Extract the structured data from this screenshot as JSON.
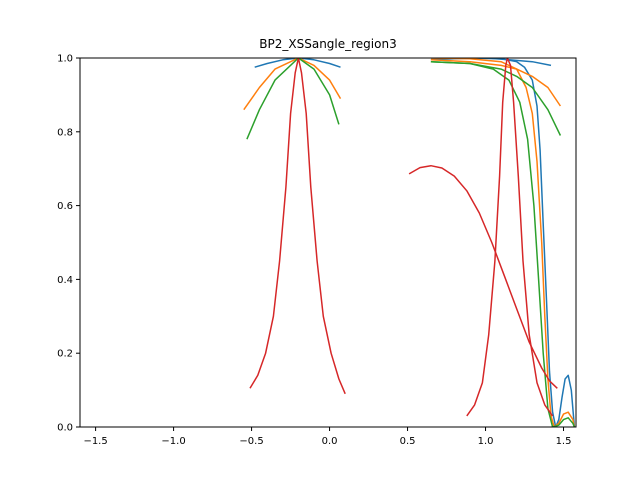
{
  "chart_data": {
    "type": "line",
    "title": "BP2_XSSangle_region3",
    "xlabel": "",
    "ylabel": "",
    "xlim": [
      -1.6,
      1.58
    ],
    "ylim": [
      0.0,
      1.0
    ],
    "xticks": [
      -1.5,
      -1.0,
      -0.5,
      0.0,
      0.5,
      1.0,
      1.5
    ],
    "xtick_labels": [
      "−1.5",
      "−1.0",
      "−0.5",
      "0.0",
      "0.5",
      "1.0",
      "1.5"
    ],
    "yticks": [
      0.0,
      0.2,
      0.4,
      0.6,
      0.8,
      1.0
    ],
    "ytick_labels": [
      "0.0",
      "0.2",
      "0.4",
      "0.6",
      "0.8",
      "1.0"
    ],
    "grid": false,
    "legend": "none",
    "series": [
      {
        "color": "#1f77b4",
        "segments": [
          [
            [
              -0.48,
              0.975
            ],
            [
              -0.4,
              0.985
            ],
            [
              -0.3,
              0.995
            ],
            [
              -0.2,
              1.0
            ],
            [
              -0.1,
              0.995
            ],
            [
              0.0,
              0.985
            ],
            [
              0.07,
              0.975
            ]
          ],
          [
            [
              0.65,
              0.995
            ],
            [
              0.8,
              0.998
            ],
            [
              1.0,
              1.0
            ],
            [
              1.15,
              0.995
            ],
            [
              1.3,
              0.99
            ],
            [
              1.42,
              0.98
            ]
          ],
          [
            [
              0.65,
              1.0
            ],
            [
              0.9,
              1.0
            ],
            [
              1.1,
              0.998
            ],
            [
              1.2,
              0.99
            ],
            [
              1.25,
              0.975
            ],
            [
              1.3,
              0.94
            ],
            [
              1.33,
              0.87
            ],
            [
              1.35,
              0.75
            ],
            [
              1.37,
              0.55
            ],
            [
              1.39,
              0.35
            ],
            [
              1.41,
              0.15
            ],
            [
              1.43,
              0.04
            ],
            [
              1.45,
              0.0
            ],
            [
              1.47,
              0.02
            ],
            [
              1.49,
              0.08
            ],
            [
              1.51,
              0.13
            ],
            [
              1.53,
              0.14
            ],
            [
              1.55,
              0.1
            ],
            [
              1.57,
              0.0
            ]
          ]
        ]
      },
      {
        "color": "#ff7f0e",
        "segments": [
          [
            [
              -0.55,
              0.86
            ],
            [
              -0.45,
              0.92
            ],
            [
              -0.35,
              0.97
            ],
            [
              -0.2,
              1.0
            ],
            [
              -0.1,
              0.98
            ],
            [
              0.0,
              0.94
            ],
            [
              0.07,
              0.89
            ]
          ],
          [
            [
              0.65,
              0.995
            ],
            [
              0.9,
              0.99
            ],
            [
              1.1,
              0.98
            ],
            [
              1.2,
              0.97
            ],
            [
              1.3,
              0.95
            ],
            [
              1.4,
              0.92
            ],
            [
              1.48,
              0.87
            ]
          ],
          [
            [
              0.65,
              1.0
            ],
            [
              0.9,
              0.998
            ],
            [
              1.1,
              0.99
            ],
            [
              1.2,
              0.97
            ],
            [
              1.26,
              0.92
            ],
            [
              1.3,
              0.85
            ],
            [
              1.33,
              0.72
            ],
            [
              1.36,
              0.5
            ],
            [
              1.38,
              0.3
            ],
            [
              1.4,
              0.13
            ],
            [
              1.42,
              0.03
            ],
            [
              1.44,
              0.0
            ],
            [
              1.47,
              0.01
            ],
            [
              1.5,
              0.035
            ],
            [
              1.53,
              0.04
            ],
            [
              1.56,
              0.02
            ],
            [
              1.57,
              0.0
            ]
          ]
        ]
      },
      {
        "color": "#2ca02c",
        "segments": [
          [
            [
              -0.53,
              0.78
            ],
            [
              -0.45,
              0.86
            ],
            [
              -0.35,
              0.94
            ],
            [
              -0.2,
              1.0
            ],
            [
              -0.1,
              0.97
            ],
            [
              0.0,
              0.9
            ],
            [
              0.06,
              0.82
            ]
          ],
          [
            [
              0.65,
              0.99
            ],
            [
              0.9,
              0.985
            ],
            [
              1.1,
              0.97
            ],
            [
              1.2,
              0.95
            ],
            [
              1.3,
              0.92
            ],
            [
              1.4,
              0.86
            ],
            [
              1.48,
              0.79
            ]
          ],
          [
            [
              0.65,
              0.99
            ],
            [
              0.9,
              0.985
            ],
            [
              1.05,
              0.97
            ],
            [
              1.15,
              0.94
            ],
            [
              1.22,
              0.88
            ],
            [
              1.27,
              0.78
            ],
            [
              1.31,
              0.6
            ],
            [
              1.34,
              0.4
            ],
            [
              1.37,
              0.2
            ],
            [
              1.4,
              0.05
            ],
            [
              1.43,
              0.0
            ],
            [
              1.47,
              0.005
            ],
            [
              1.5,
              0.02
            ],
            [
              1.53,
              0.025
            ],
            [
              1.56,
              0.01
            ],
            [
              1.57,
              0.0
            ]
          ]
        ]
      },
      {
        "color": "#d62728",
        "segments": [
          [
            [
              -0.51,
              0.105
            ],
            [
              -0.46,
              0.14
            ],
            [
              -0.41,
              0.2
            ],
            [
              -0.36,
              0.3
            ],
            [
              -0.32,
              0.45
            ],
            [
              -0.28,
              0.65
            ],
            [
              -0.25,
              0.85
            ],
            [
              -0.22,
              0.96
            ],
            [
              -0.2,
              1.0
            ],
            [
              -0.18,
              0.96
            ],
            [
              -0.15,
              0.85
            ],
            [
              -0.12,
              0.65
            ],
            [
              -0.08,
              0.45
            ],
            [
              -0.04,
              0.3
            ],
            [
              0.01,
              0.2
            ],
            [
              0.06,
              0.13
            ],
            [
              0.1,
              0.09
            ]
          ],
          [
            [
              0.51,
              0.686
            ],
            [
              0.58,
              0.703
            ],
            [
              0.65,
              0.708
            ],
            [
              0.72,
              0.702
            ],
            [
              0.8,
              0.68
            ],
            [
              0.88,
              0.64
            ],
            [
              0.96,
              0.58
            ],
            [
              1.04,
              0.5
            ],
            [
              1.12,
              0.41
            ],
            [
              1.2,
              0.32
            ],
            [
              1.28,
              0.23
            ],
            [
              1.36,
              0.16
            ],
            [
              1.41,
              0.125
            ],
            [
              1.46,
              0.105
            ]
          ],
          [
            [
              0.88,
              0.03
            ],
            [
              0.93,
              0.06
            ],
            [
              0.98,
              0.12
            ],
            [
              1.02,
              0.25
            ],
            [
              1.06,
              0.45
            ],
            [
              1.09,
              0.68
            ],
            [
              1.11,
              0.88
            ],
            [
              1.13,
              0.98
            ],
            [
              1.14,
              1.0
            ],
            [
              1.16,
              0.98
            ],
            [
              1.18,
              0.88
            ],
            [
              1.21,
              0.68
            ],
            [
              1.24,
              0.45
            ],
            [
              1.28,
              0.25
            ],
            [
              1.33,
              0.12
            ],
            [
              1.38,
              0.06
            ],
            [
              1.43,
              0.03
            ]
          ]
        ]
      }
    ]
  }
}
